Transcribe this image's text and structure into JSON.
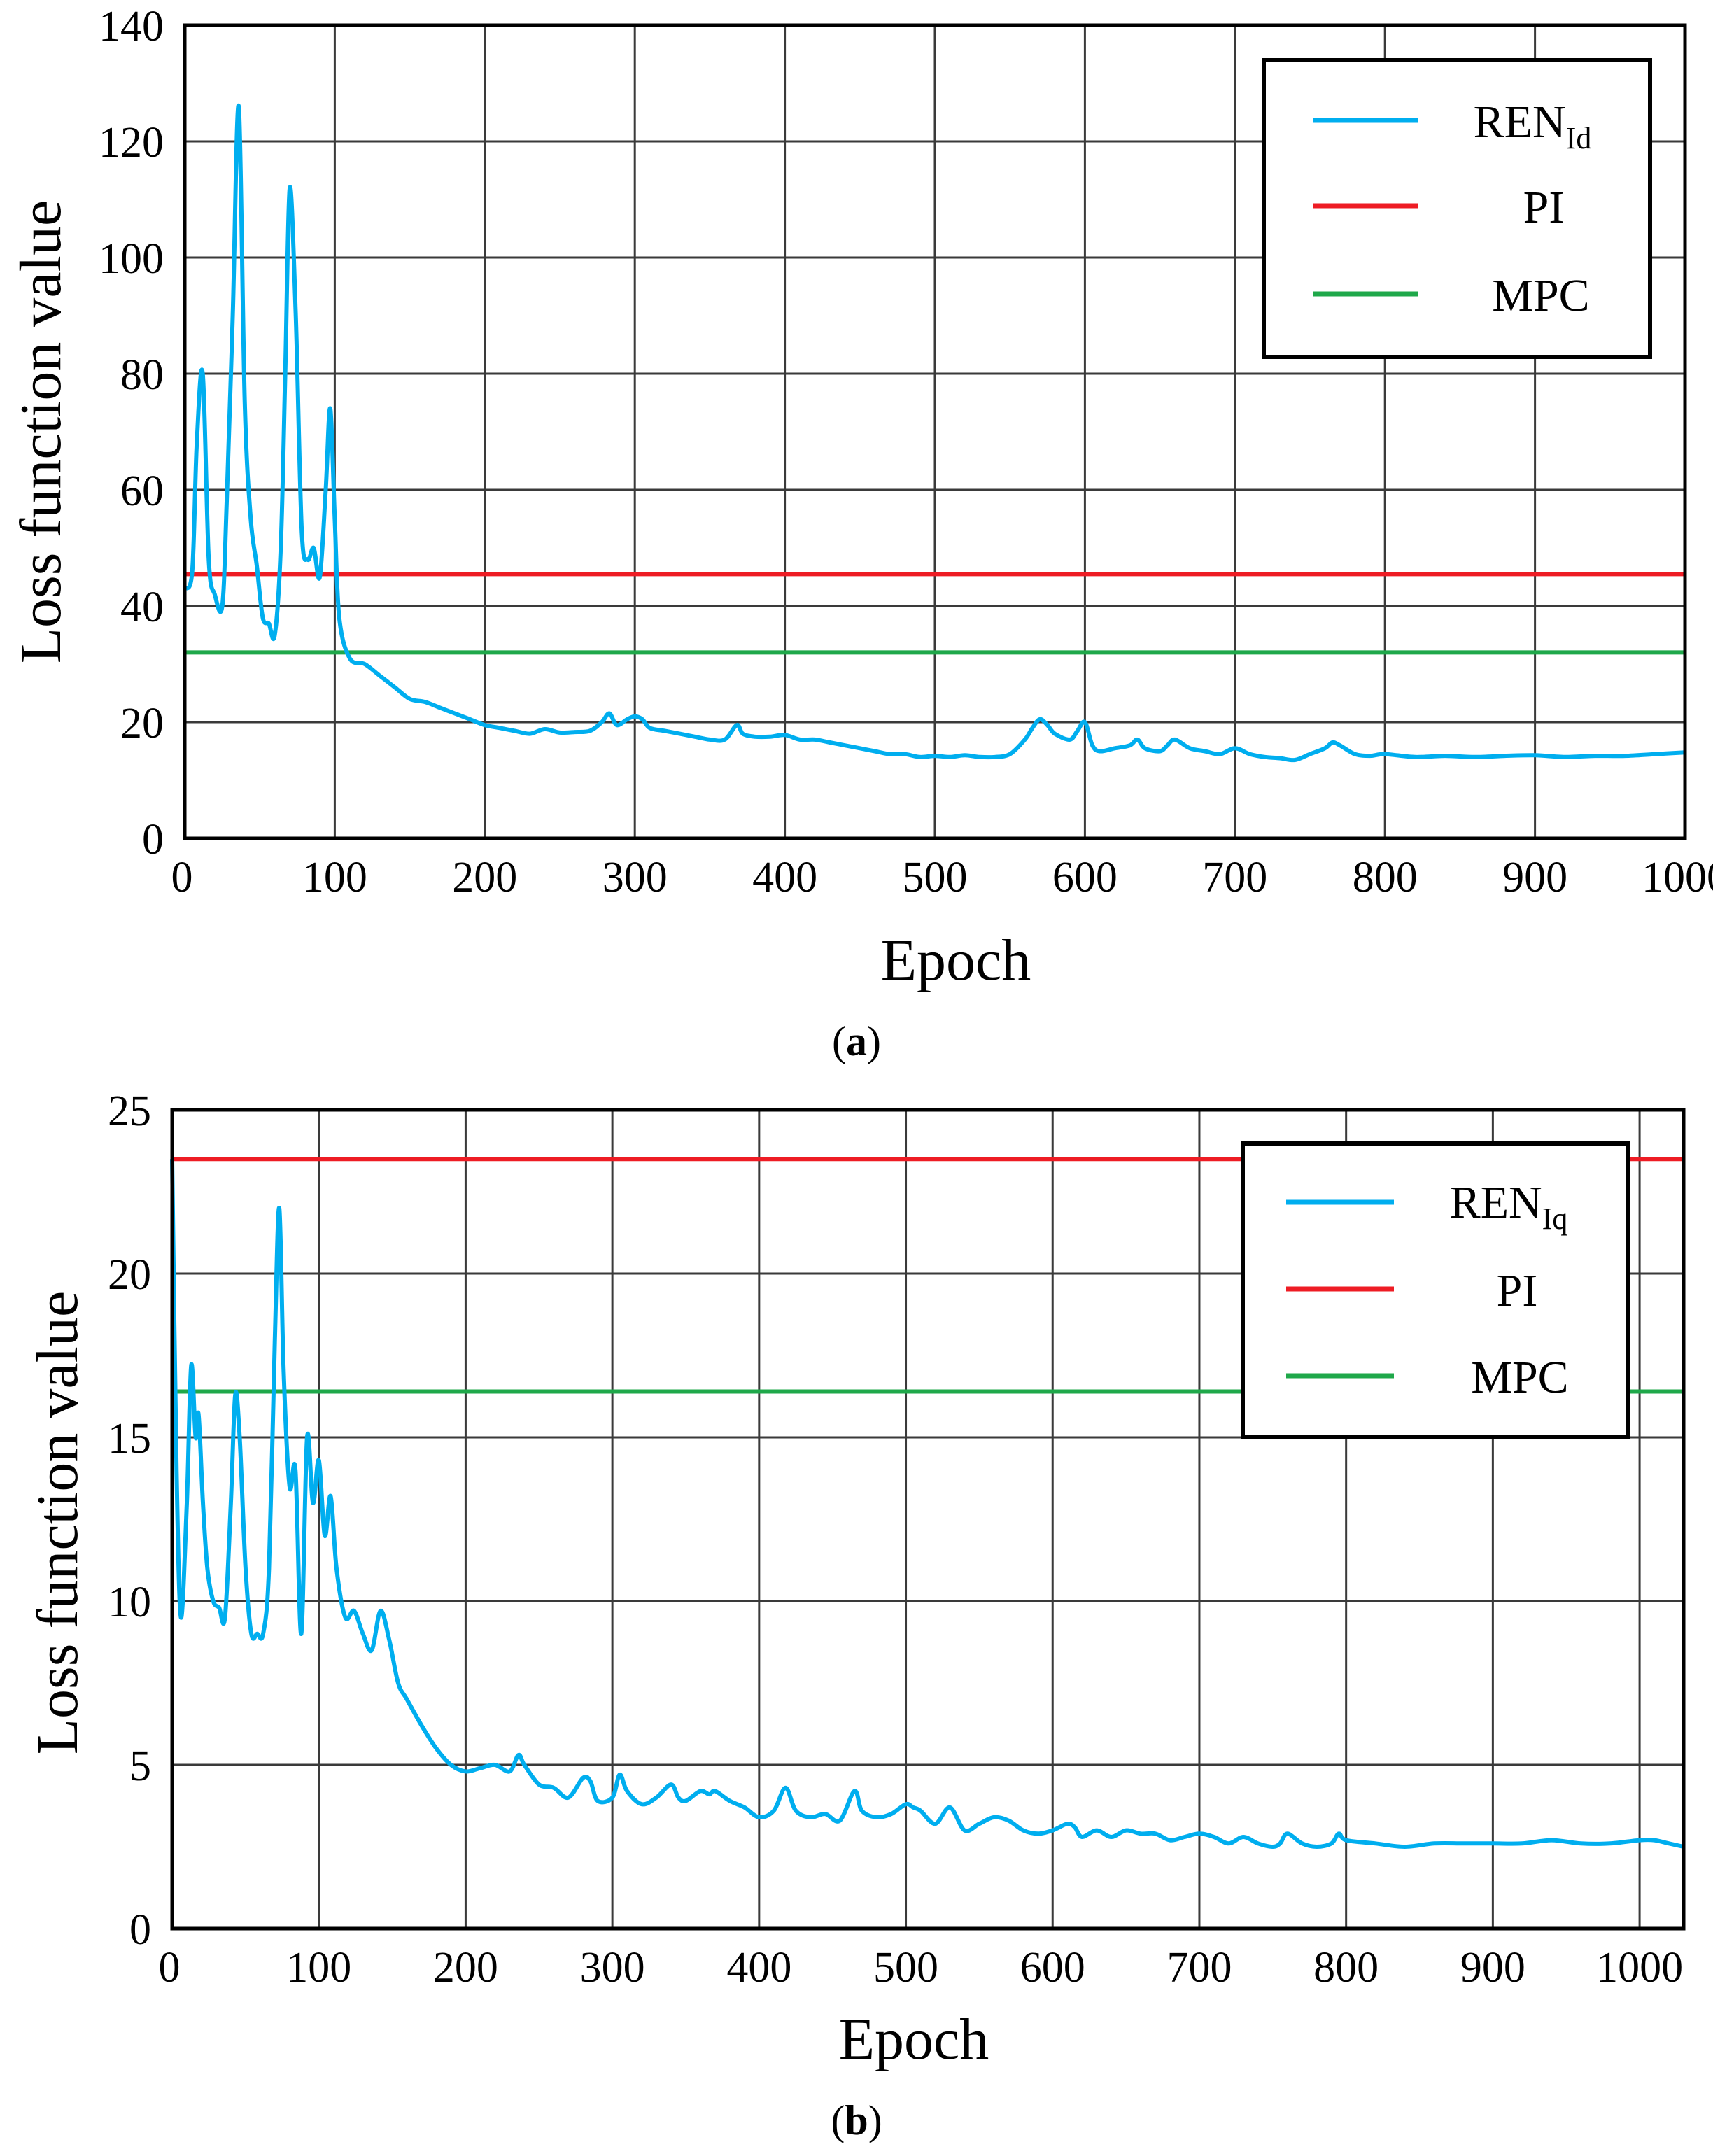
{
  "colors": {
    "ren": "#00AEEF",
    "pi": "#EE1C24",
    "mpc": "#1FA84A"
  },
  "chart_data": [
    {
      "type": "line",
      "caption_letter": "a",
      "xlabel": "Epoch",
      "ylabel": "Loss function value",
      "xlim": [
        0,
        1000
      ],
      "ylim": [
        0,
        140
      ],
      "xticks": [
        0,
        100,
        200,
        300,
        400,
        500,
        600,
        700,
        800,
        900,
        1000
      ],
      "yticks": [
        0,
        20,
        40,
        60,
        80,
        100,
        120,
        140
      ],
      "legend_position": "top-right",
      "legend": {
        "ren_base": "REN",
        "ren_sub": "Id",
        "pi": "PI",
        "mpc": "MPC"
      },
      "pi_value": 45.5,
      "mpc_value": 32,
      "series_ren": {
        "name": "REN_Id",
        "x": [
          0,
          5,
          8,
          12,
          16,
          20,
          25,
          28,
          32,
          36,
          40,
          44,
          48,
          52,
          56,
          60,
          64,
          67,
          70,
          74,
          78,
          82,
          86,
          90,
          94,
          97,
          100,
          103,
          110,
          120,
          130,
          140,
          150,
          160,
          170,
          180,
          190,
          200,
          210,
          220,
          230,
          240,
          250,
          260,
          270,
          278,
          283,
          288,
          295,
          300,
          305,
          310,
          320,
          330,
          340,
          350,
          360,
          368,
          372,
          380,
          390,
          400,
          410,
          420,
          430,
          440,
          450,
          460,
          470,
          480,
          490,
          500,
          510,
          520,
          530,
          540,
          550,
          560,
          565,
          570,
          575,
          580,
          590,
          595,
          600,
          605,
          610,
          620,
          630,
          635,
          640,
          650,
          655,
          660,
          670,
          680,
          690,
          700,
          710,
          720,
          730,
          740,
          750,
          760,
          765,
          770,
          780,
          790,
          800,
          820,
          840,
          860,
          880,
          900,
          920,
          940,
          960,
          980,
          1000
        ],
        "y": [
          43,
          46,
          68,
          80,
          48,
          42,
          40,
          58,
          90,
          126,
          75,
          55,
          47,
          38,
          37,
          35,
          50,
          80,
          112,
          90,
          53,
          48,
          50,
          45,
          60,
          74,
          55,
          38,
          31,
          30,
          28,
          26,
          24,
          23.5,
          22.5,
          21.5,
          20.5,
          19.5,
          19,
          18.5,
          18,
          18.8,
          18.2,
          18.3,
          18.5,
          20,
          21.5,
          19.5,
          20.5,
          21,
          20.5,
          19,
          18.5,
          18,
          17.5,
          17,
          17,
          19.5,
          18,
          17.5,
          17.5,
          17.8,
          17,
          17,
          16.5,
          16,
          15.5,
          15,
          14.5,
          14.5,
          14,
          14.2,
          14,
          14.3,
          14,
          14,
          14.5,
          17,
          19,
          20.5,
          19.5,
          18,
          17,
          18.5,
          20,
          16,
          15,
          15.5,
          16,
          17,
          15.5,
          15,
          16,
          17,
          15.5,
          15,
          14.5,
          15.5,
          14.5,
          14,
          13.8,
          13.5,
          14.5,
          15.5,
          16.5,
          16,
          14.5,
          14.2,
          14.5,
          14,
          14.2,
          14,
          14.2,
          14.3,
          14,
          14.2,
          14.2,
          14.5,
          14.8
        ]
      }
    },
    {
      "type": "line",
      "caption_letter": "b",
      "xlabel": "Epoch",
      "ylabel": "Loss function value",
      "xlim": [
        0,
        1030
      ],
      "ylim": [
        0,
        25
      ],
      "xticks": [
        0,
        100,
        200,
        300,
        400,
        500,
        600,
        700,
        800,
        900,
        1000
      ],
      "yticks": [
        0,
        5,
        10,
        15,
        20,
        25
      ],
      "legend_position": "top-right",
      "legend": {
        "ren_base": "REN",
        "ren_sub": "Iq",
        "pi": "PI",
        "mpc": "MPC"
      },
      "pi_value": 23.5,
      "mpc_value": 16.4,
      "series_ren": {
        "name": "REN_Iq",
        "x": [
          0,
          3,
          6,
          10,
          13,
          16,
          18,
          21,
          24,
          28,
          32,
          36,
          40,
          43,
          46,
          50,
          54,
          58,
          62,
          66,
          70,
          73,
          76,
          80,
          84,
          88,
          92,
          96,
          100,
          104,
          108,
          112,
          118,
          124,
          130,
          136,
          142,
          148,
          154,
          160,
          170,
          180,
          190,
          200,
          210,
          220,
          230,
          236,
          240,
          250,
          260,
          270,
          280,
          285,
          290,
          300,
          305,
          310,
          320,
          330,
          340,
          345,
          350,
          360,
          366,
          370,
          380,
          390,
          400,
          410,
          418,
          425,
          435,
          445,
          455,
          465,
          470,
          480,
          490,
          500,
          505,
          510,
          520,
          530,
          540,
          550,
          560,
          570,
          580,
          590,
          600,
          610,
          615,
          620,
          630,
          640,
          650,
          660,
          670,
          680,
          690,
          700,
          710,
          720,
          730,
          740,
          750,
          755,
          760,
          770,
          780,
          790,
          795,
          800,
          820,
          840,
          860,
          880,
          900,
          920,
          940,
          960,
          980,
          1000,
          1010,
          1020,
          1030
        ],
        "y": [
          23.5,
          14,
          9.5,
          13,
          17.2,
          15,
          15.7,
          13,
          11,
          10,
          9.8,
          9.5,
          13,
          16.3,
          15,
          11,
          9,
          9,
          9,
          11,
          18,
          22,
          17,
          13.5,
          14,
          9,
          15,
          13,
          14.3,
          12,
          13.2,
          11,
          9.5,
          9.7,
          9,
          8.5,
          9.7,
          8.8,
          7.5,
          7,
          6.2,
          5.5,
          5,
          4.8,
          4.9,
          5,
          4.8,
          5.3,
          5,
          4.4,
          4.3,
          4,
          4.6,
          4.5,
          3.9,
          4,
          4.7,
          4.2,
          3.8,
          4,
          4.4,
          4,
          3.9,
          4.2,
          4.1,
          4.2,
          3.9,
          3.7,
          3.4,
          3.6,
          4.3,
          3.6,
          3.4,
          3.5,
          3.3,
          4.2,
          3.6,
          3.4,
          3.5,
          3.8,
          3.7,
          3.6,
          3.2,
          3.7,
          3,
          3.2,
          3.4,
          3.3,
          3,
          2.9,
          3,
          3.2,
          3.1,
          2.8,
          3,
          2.8,
          3,
          2.9,
          2.9,
          2.7,
          2.8,
          2.9,
          2.8,
          2.6,
          2.8,
          2.6,
          2.5,
          2.6,
          2.9,
          2.6,
          2.5,
          2.6,
          2.9,
          2.7,
          2.6,
          2.5,
          2.6,
          2.6,
          2.6,
          2.6,
          2.7,
          2.6,
          2.6,
          2.7,
          2.7,
          2.6,
          2.5
        ]
      }
    }
  ]
}
